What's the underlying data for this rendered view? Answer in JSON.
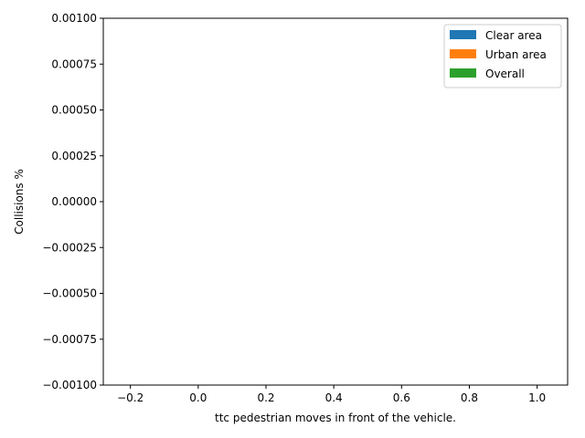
{
  "chart_data": {
    "type": "bar",
    "title": "",
    "xlabel": "ttc pedestrian moves in front of the vehicle.",
    "ylabel": "Collisions %",
    "xlim": [
      -0.28,
      1.09
    ],
    "ylim": [
      -0.001,
      0.001
    ],
    "xticks": [
      -0.2,
      0.0,
      0.2,
      0.4,
      0.6,
      0.8,
      1.0
    ],
    "xtick_labels": [
      "−0.2",
      "0.0",
      "0.2",
      "0.4",
      "0.6",
      "0.8",
      "1.0"
    ],
    "yticks": [
      -0.001,
      -0.00075,
      -0.0005,
      -0.00025,
      0.0,
      0.00025,
      0.0005,
      0.00075,
      0.001
    ],
    "ytick_labels": [
      "−0.00100",
      "−0.00075",
      "−0.00050",
      "−0.00025",
      "0.00000",
      "0.00025",
      "0.00050",
      "0.00075",
      "0.00100"
    ],
    "grid": false,
    "legend_position": "top-right",
    "series": [
      {
        "name": "Clear area",
        "color": "#1f77b4",
        "values": []
      },
      {
        "name": "Urban area",
        "color": "#ff7f0e",
        "values": []
      },
      {
        "name": "Overall",
        "color": "#2ca02c",
        "values": []
      }
    ]
  }
}
